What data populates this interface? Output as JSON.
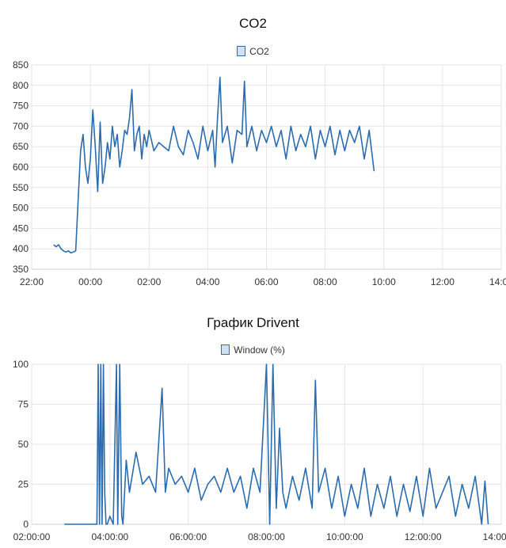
{
  "chart_data": [
    {
      "type": "line",
      "title": "CO2",
      "xlabel": "",
      "ylabel": "",
      "grid": true,
      "legend": "top",
      "color": "#2b6cb0",
      "ylim": [
        350,
        850
      ],
      "yticks": [
        350,
        400,
        450,
        500,
        550,
        600,
        650,
        700,
        750,
        800,
        850
      ],
      "xlim": [
        "22:00",
        "14:00"
      ],
      "xticks": [
        "22:00",
        "00:00",
        "02:00",
        "04:00",
        "06:00",
        "08:00",
        "10:00",
        "12:00",
        "14:00"
      ],
      "series": [
        {
          "name": "CO2",
          "x": [
            "22:45",
            "22:50",
            "22:55",
            "23:00",
            "23:05",
            "23:10",
            "23:15",
            "23:20",
            "23:25",
            "23:30",
            "23:35",
            "23:40",
            "23:45",
            "23:50",
            "23:55",
            "00:00",
            "00:05",
            "00:10",
            "00:15",
            "00:20",
            "00:25",
            "00:30",
            "00:35",
            "00:40",
            "00:45",
            "00:50",
            "00:55",
            "01:00",
            "01:05",
            "01:10",
            "01:15",
            "01:20",
            "01:25",
            "01:30",
            "01:35",
            "01:40",
            "01:45",
            "01:50",
            "01:55",
            "02:00",
            "02:10",
            "02:20",
            "02:30",
            "02:40",
            "02:50",
            "03:00",
            "03:10",
            "03:20",
            "03:30",
            "03:40",
            "03:50",
            "04:00",
            "04:10",
            "04:15",
            "04:20",
            "04:25",
            "04:30",
            "04:40",
            "04:50",
            "05:00",
            "05:10",
            "05:15",
            "05:20",
            "05:30",
            "05:40",
            "05:50",
            "06:00",
            "06:10",
            "06:20",
            "06:30",
            "06:40",
            "06:50",
            "07:00",
            "07:10",
            "07:20",
            "07:30",
            "07:40",
            "07:50",
            "08:00",
            "08:10",
            "08:20",
            "08:30",
            "08:40",
            "08:50",
            "09:00",
            "09:10",
            "09:20",
            "09:30",
            "09:35",
            "09:40"
          ],
          "values": [
            410,
            405,
            410,
            400,
            395,
            392,
            395,
            390,
            392,
            395,
            520,
            640,
            680,
            600,
            560,
            620,
            740,
            650,
            540,
            710,
            560,
            600,
            660,
            620,
            700,
            650,
            680,
            600,
            640,
            690,
            680,
            720,
            790,
            640,
            680,
            700,
            620,
            680,
            650,
            690,
            640,
            660,
            650,
            640,
            700,
            650,
            630,
            690,
            660,
            620,
            700,
            640,
            690,
            600,
            720,
            820,
            660,
            700,
            610,
            690,
            680,
            810,
            650,
            700,
            640,
            690,
            660,
            700,
            650,
            690,
            620,
            700,
            640,
            680,
            650,
            700,
            620,
            690,
            650,
            700,
            630,
            690,
            640,
            690,
            660,
            700,
            620,
            690,
            640,
            590
          ]
        }
      ]
    },
    {
      "type": "line",
      "title": "График Drivent",
      "xlabel": "",
      "ylabel": "",
      "grid": true,
      "legend": "top",
      "color": "#2b6cb0",
      "ylim": [
        0,
        100
      ],
      "yticks": [
        0,
        25,
        50,
        75,
        100
      ],
      "xlim": [
        "02:00:00",
        "14:00:00"
      ],
      "xticks": [
        "02:00:00",
        "04:00:00",
        "06:00:00",
        "08:00:00",
        "10:00:00",
        "12:00:00",
        "14:00:00"
      ],
      "series": [
        {
          "name": "Window (%)",
          "x": [
            "02:50:00",
            "03:40:00",
            "03:42:00",
            "03:44:00",
            "03:46:00",
            "03:48:00",
            "03:50:00",
            "03:52:00",
            "03:54:00",
            "03:56:00",
            "04:00:00",
            "04:05:00",
            "04:10:00",
            "04:12:00",
            "04:15:00",
            "04:18:00",
            "04:20:00",
            "04:25:00",
            "04:30:00",
            "04:40:00",
            "04:50:00",
            "05:00:00",
            "05:10:00",
            "05:20:00",
            "05:25:00",
            "05:30:00",
            "05:40:00",
            "05:50:00",
            "06:00:00",
            "06:10:00",
            "06:20:00",
            "06:30:00",
            "06:40:00",
            "06:50:00",
            "07:00:00",
            "07:10:00",
            "07:20:00",
            "07:30:00",
            "07:40:00",
            "07:50:00",
            "08:00:00",
            "08:05:00",
            "08:10:00",
            "08:15:00",
            "08:20:00",
            "08:25:00",
            "08:30:00",
            "08:40:00",
            "08:50:00",
            "09:00:00",
            "09:10:00",
            "09:15:00",
            "09:20:00",
            "09:30:00",
            "09:40:00",
            "09:50:00",
            "10:00:00",
            "10:10:00",
            "10:20:00",
            "10:30:00",
            "10:40:00",
            "10:50:00",
            "11:00:00",
            "11:10:00",
            "11:20:00",
            "11:30:00",
            "11:40:00",
            "11:50:00",
            "12:00:00",
            "12:10:00",
            "12:20:00",
            "12:30:00",
            "12:40:00",
            "12:50:00",
            "13:00:00",
            "13:10:00",
            "13:20:00",
            "13:30:00",
            "13:35:00",
            "13:40:00"
          ],
          "values": [
            0,
            0,
            100,
            0,
            100,
            0,
            100,
            20,
            0,
            0,
            5,
            0,
            100,
            0,
            100,
            5,
            0,
            40,
            20,
            45,
            25,
            30,
            20,
            85,
            20,
            35,
            25,
            30,
            20,
            35,
            15,
            25,
            30,
            20,
            35,
            20,
            30,
            10,
            35,
            20,
            100,
            0,
            100,
            10,
            60,
            20,
            10,
            30,
            15,
            35,
            10,
            90,
            20,
            35,
            10,
            30,
            5,
            25,
            10,
            35,
            5,
            25,
            10,
            30,
            5,
            25,
            8,
            30,
            5,
            35,
            10,
            20,
            30,
            5,
            25,
            10,
            30,
            0,
            27,
            0
          ]
        }
      ]
    }
  ]
}
